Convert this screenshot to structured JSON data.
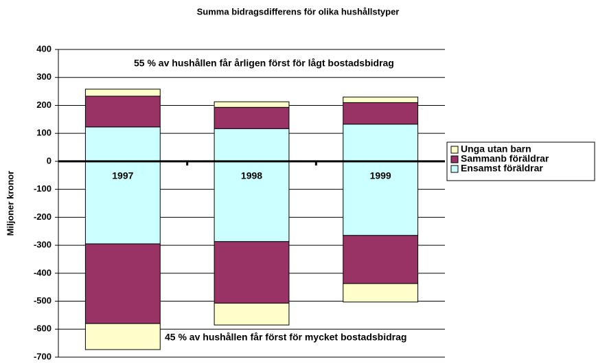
{
  "chart_data": {
    "type": "stacked_bar",
    "title": "Summa bidragsdifferens för olika hushållstyper",
    "ylabel": "Miljoner kronor",
    "annotations": [
      "55 % av hushållen får årligen först för lågt bostadsbidrag",
      "45 % av hushållen får först för mycket bostadsbidrag"
    ],
    "categories": [
      "1997",
      "1998",
      "1999"
    ],
    "series": [
      {
        "name": "Ensamst föräldrar",
        "color": "#ccffff",
        "values": [
          123,
          117,
          133
        ],
        "negative_values": [
          -295,
          -287,
          -265
        ]
      },
      {
        "name": "Sammanb föräldrar",
        "color": "#993366",
        "values": [
          110,
          76,
          77
        ],
        "negative_values": [
          -285,
          -220,
          -172
        ]
      },
      {
        "name": "Unga utan barn",
        "color": "#ffffcc",
        "values": [
          25,
          20,
          20
        ],
        "negative_values": [
          -93,
          -78,
          -66
        ]
      }
    ],
    "ylim": [
      -700,
      400
    ],
    "yticks": [
      -700,
      -600,
      -500,
      -400,
      -300,
      -200,
      -100,
      0,
      100,
      200,
      300,
      400
    ],
    "grid": true
  }
}
